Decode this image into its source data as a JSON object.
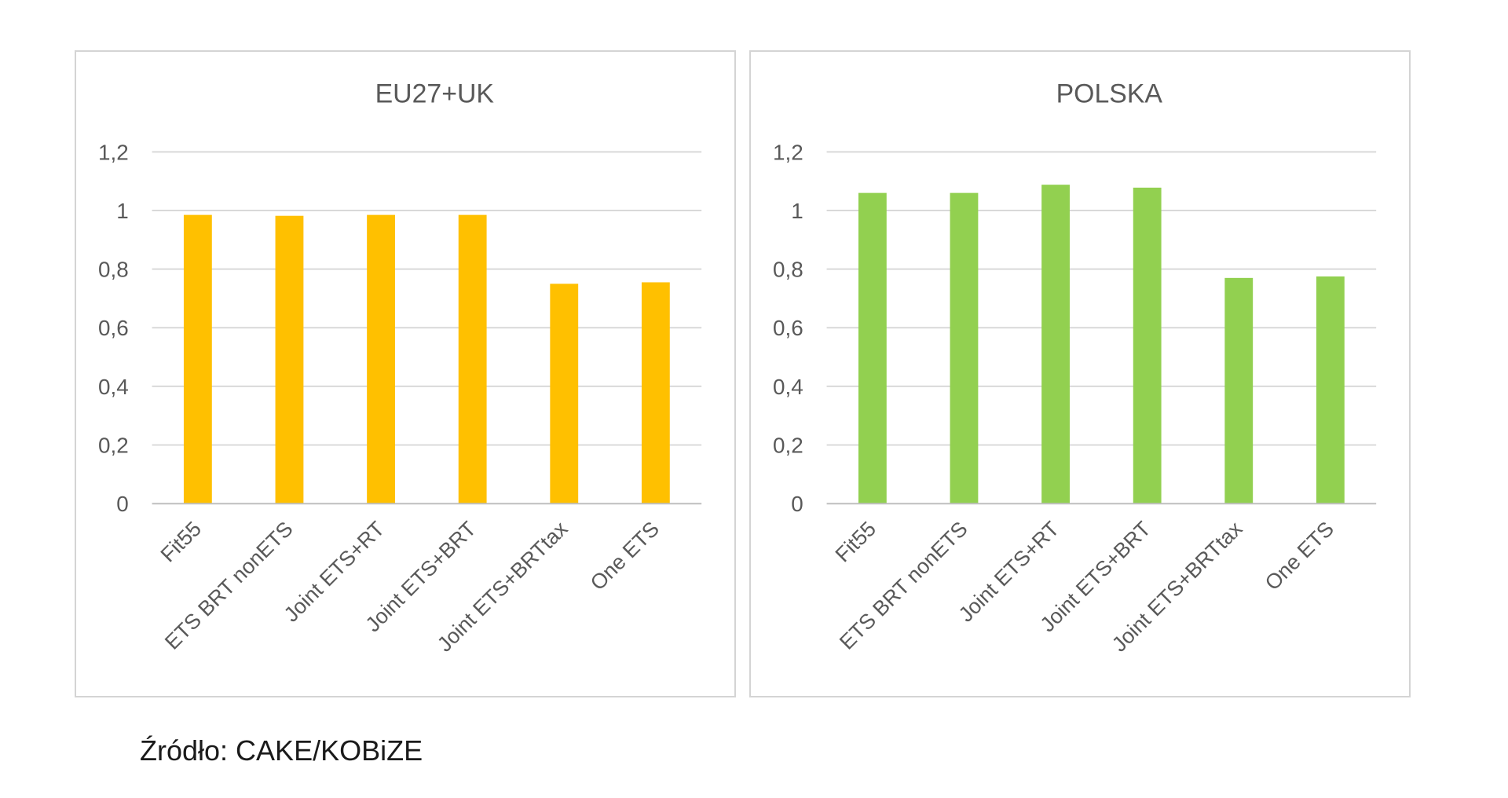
{
  "chart_data": [
    {
      "type": "bar",
      "title": "EU27+UK",
      "categories": [
        "Fit55",
        "ETS BRT nonETS",
        "Joint ETS+RT",
        "Joint ETS+BRT",
        "Joint ETS+BRTtax",
        "One ETS"
      ],
      "values": [
        0.985,
        0.982,
        0.985,
        0.985,
        0.75,
        0.755
      ],
      "ylim": [
        0,
        1.2
      ],
      "yticks": [
        "0",
        "0,2",
        "0,4",
        "0,6",
        "0,8",
        "1",
        "1,2"
      ],
      "grid": true,
      "colors": {
        "bar": "#FFC000"
      }
    },
    {
      "type": "bar",
      "title": "POLSKA",
      "categories": [
        "Fit55",
        "ETS BRT nonETS",
        "Joint ETS+RT",
        "Joint ETS+BRT",
        "Joint ETS+BRTtax",
        "One ETS"
      ],
      "values": [
        1.06,
        1.06,
        1.088,
        1.078,
        0.77,
        0.775
      ],
      "ylim": [
        0,
        1.2
      ],
      "yticks": [
        "0",
        "0,2",
        "0,4",
        "0,6",
        "0,8",
        "1",
        "1,2"
      ],
      "grid": true,
      "colors": {
        "bar": "#92D050"
      }
    }
  ],
  "source_note": "Źródło: CAKE/KOBiZE",
  "colors": {
    "axis": "#bfbfbf",
    "grid": "#d9d9d9",
    "text": "#595959",
    "panel_border": "#d4d4d4"
  }
}
